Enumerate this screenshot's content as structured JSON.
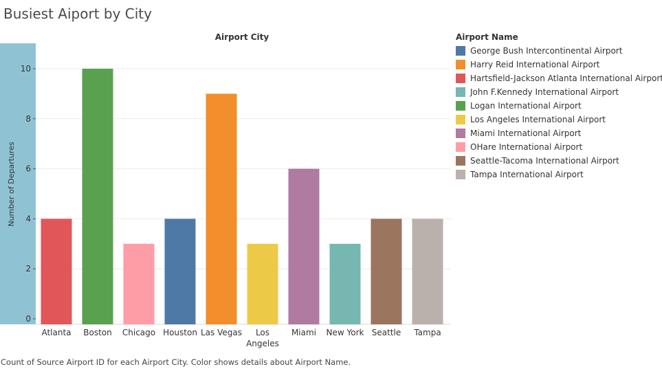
{
  "title": "Busiest Aiport by City",
  "caption": "Count of Source Airport ID for each Airport City.  Color shows details about Airport Name.",
  "legend": {
    "title": "Airport Name",
    "placement": "right",
    "items": [
      {
        "label": "George Bush Intercontinental Airport",
        "color": "#4e79a7"
      },
      {
        "label": "Harry Reid International Airport",
        "color": "#f28e2b"
      },
      {
        "label": "Hartsfield-Jackson Atlanta International Airport",
        "color": "#e15759"
      },
      {
        "label": "John F.Kennedy International Airport",
        "color": "#76b7b2"
      },
      {
        "label": "Logan International Airport",
        "color": "#59a14f"
      },
      {
        "label": "Los Angeles International Airport",
        "color": "#edc948"
      },
      {
        "label": "Miami International Airport",
        "color": "#b07aa1"
      },
      {
        "label": "OHare International Airport",
        "color": "#ff9da7"
      },
      {
        "label": "Seattle-Tacoma International Airport",
        "color": "#9c755f"
      },
      {
        "label": "Tampa International Airport",
        "color": "#bab0ac"
      }
    ]
  },
  "chart_data": {
    "type": "bar",
    "title": "Busiest Aiport by City",
    "xlabel": "Airport City",
    "ylabel": "Number of Departures",
    "categories": [
      "Atlanta",
      "Boston",
      "Chicago",
      "Houston",
      "Las Vegas",
      "Los Angeles",
      "Miami",
      "New York",
      "Seattle",
      "Tampa"
    ],
    "category_labels": [
      [
        "Atlanta"
      ],
      [
        "Boston"
      ],
      [
        "Chicago"
      ],
      [
        "Houston"
      ],
      [
        "Las Vegas"
      ],
      [
        "Los",
        "Angeles"
      ],
      [
        "Miami"
      ],
      [
        "New York"
      ],
      [
        "Seattle"
      ],
      [
        "Tampa"
      ]
    ],
    "values": [
      4,
      10,
      3,
      4,
      9,
      3,
      6,
      3,
      4,
      4
    ],
    "colors": [
      "#e15759",
      "#59a14f",
      "#ff9da7",
      "#4e79a7",
      "#f28e2b",
      "#edc948",
      "#b07aa1",
      "#76b7b2",
      "#9c755f",
      "#bab0ac"
    ],
    "ylim": [
      0,
      11.2
    ],
    "yticks": [
      0,
      2,
      4,
      6,
      8,
      10
    ],
    "grid": true,
    "axis_band_color": "#8fc3d4"
  }
}
